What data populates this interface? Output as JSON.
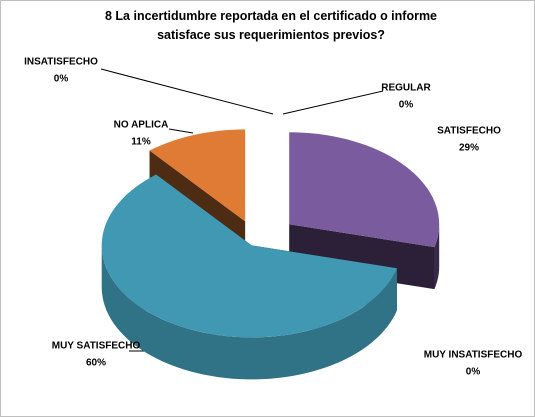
{
  "chart_data": {
    "type": "pie3d",
    "title": "8 La incertidumbre reportada en el certificado o informe satisface sus requerimientos previos?",
    "categories": [
      "REGULAR",
      "SATISFECHO",
      "MUY INSATISFECHO",
      "MUY SATISFECHO",
      "NO APLICA",
      "INSATISFECHO"
    ],
    "values": [
      0,
      29,
      0,
      60,
      11,
      0
    ],
    "value_labels": [
      "0%",
      "29%",
      "0%",
      "60%",
      "11%",
      "0%"
    ],
    "colors": [
      "#c0504d",
      "#7a5c9e",
      "#9bbb59",
      "#4098b3",
      "#e07b35",
      "#4f81bd"
    ]
  }
}
